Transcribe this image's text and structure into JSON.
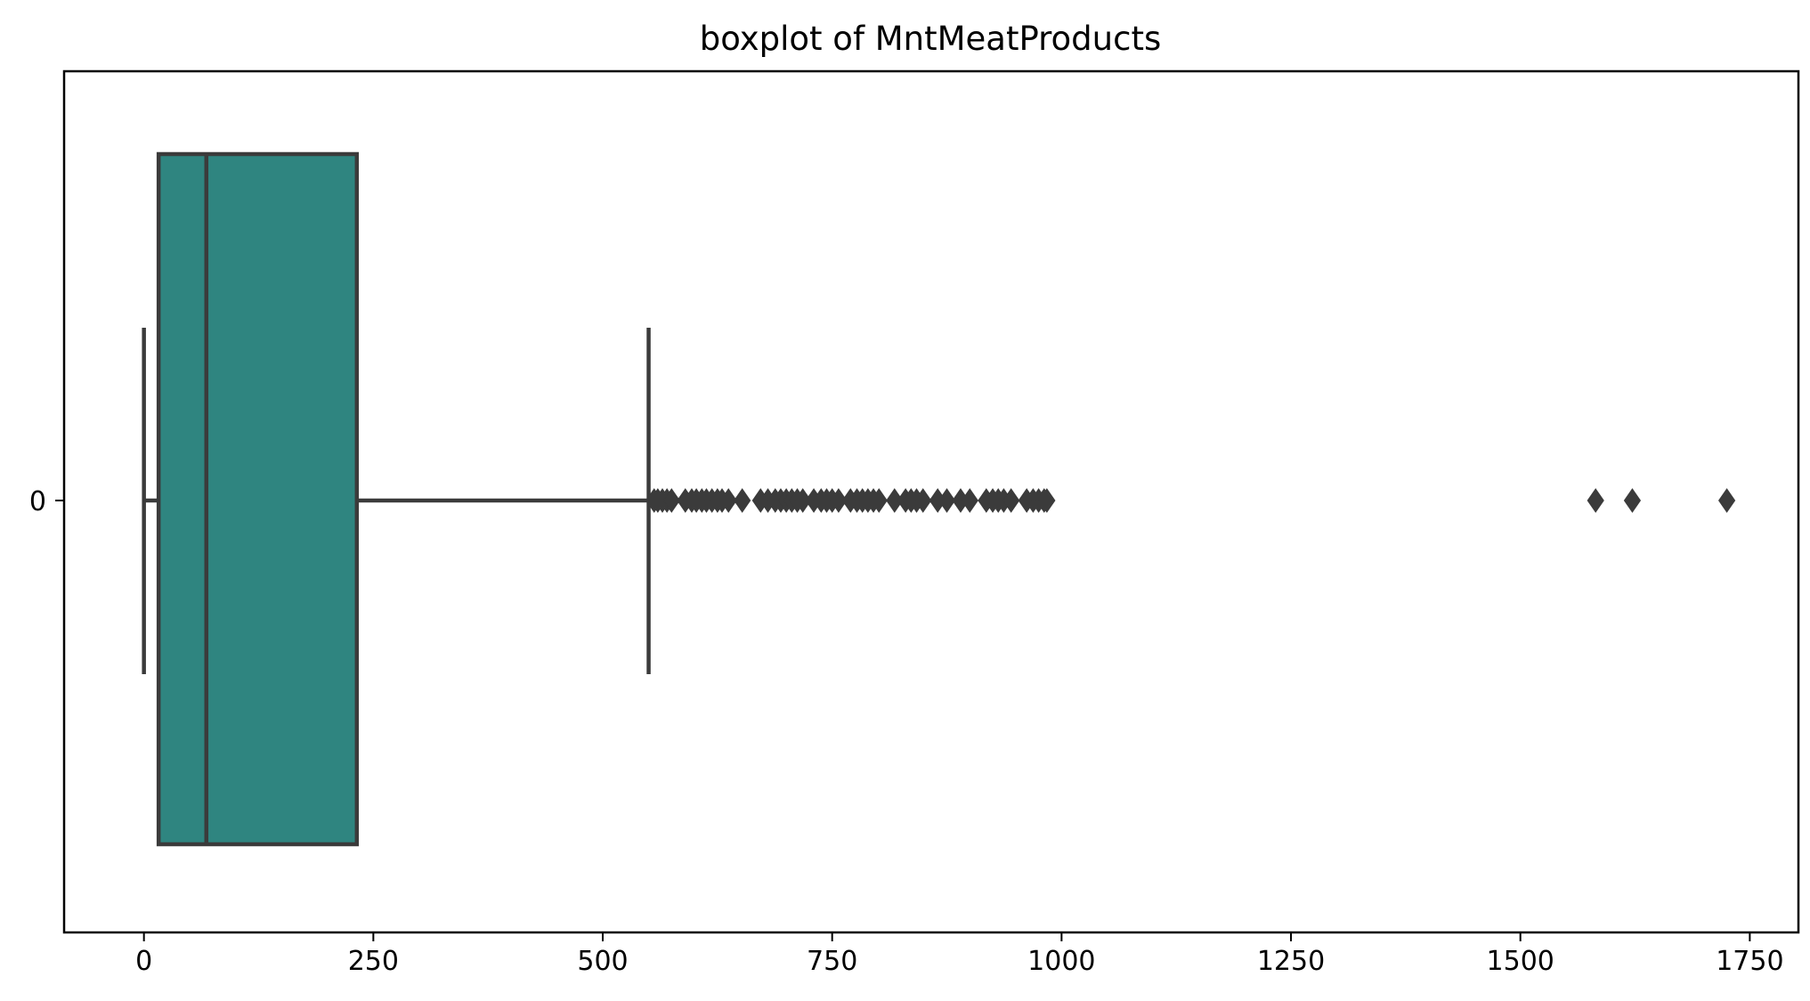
{
  "chart_data": {
    "type": "boxplot",
    "title": "boxplot of MntMeatProducts",
    "orientation": "horizontal",
    "xlabel": "",
    "ylabel": "",
    "xlim": [
      -87,
      1803
    ],
    "x_ticks": [
      0,
      250,
      500,
      750,
      1000,
      1250,
      1500,
      1750
    ],
    "x_tick_labels": [
      "0",
      "250",
      "500",
      "750",
      "1000",
      "1250",
      "1500",
      "1750"
    ],
    "y_categories": [
      "0"
    ],
    "grid": false,
    "legend": "none",
    "box_color": "#2f8580",
    "line_color": "#3b3b3b",
    "series": [
      {
        "category": "0",
        "whisker_low": 0,
        "q1": 16,
        "median": 68,
        "q3": 232,
        "whisker_high": 550,
        "outliers": [
          556,
          560,
          565,
          570,
          575,
          590,
          597,
          602,
          608,
          613,
          619,
          625,
          630,
          637,
          652,
          672,
          680,
          688,
          694,
          700,
          706,
          712,
          718,
          730,
          738,
          744,
          750,
          757,
          770,
          777,
          783,
          789,
          795,
          801,
          818,
          830,
          836,
          842,
          849,
          865,
          875,
          890,
          900,
          918,
          925,
          931,
          937,
          945,
          962,
          969,
          975,
          981,
          984,
          1582,
          1622,
          1725
        ]
      }
    ]
  }
}
